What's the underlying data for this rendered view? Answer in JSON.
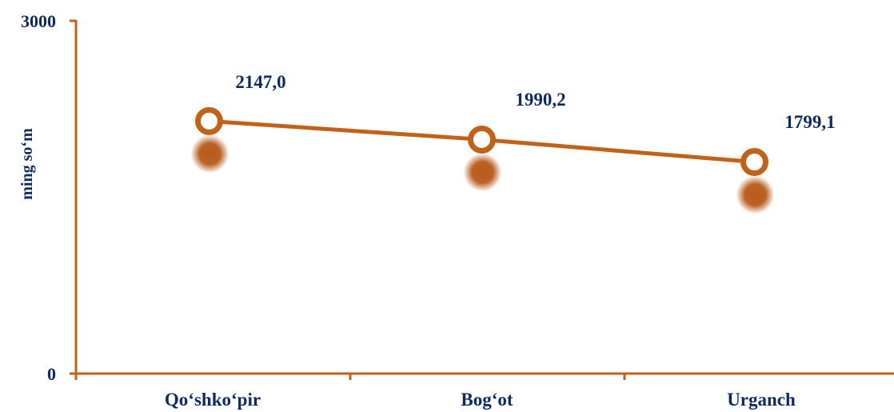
{
  "chart_data": {
    "type": "line",
    "categories": [
      "Qo‘shko‘pir",
      "Bog‘ot",
      "Urganch"
    ],
    "series": [
      {
        "values": [
          2147.0,
          1990.2,
          1799.1
        ]
      }
    ],
    "data_labels": [
      "2147,0",
      "1990,2",
      "1799,1"
    ],
    "ylabel": "ming so‘m",
    "ylim": [
      0,
      3000
    ],
    "yticks": [
      "0",
      "3000"
    ],
    "grid": false,
    "legend": "none",
    "colors": {
      "line": "#c0621a",
      "marker_fill": "#ffffff",
      "shadow": "#b85a1a",
      "text": "#0f2a5c"
    }
  }
}
